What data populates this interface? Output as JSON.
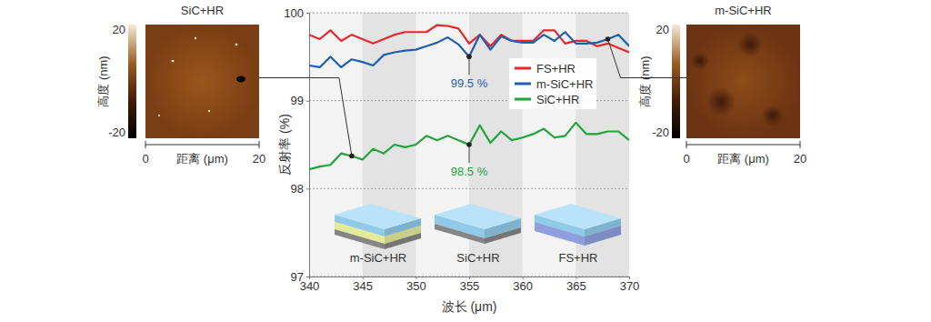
{
  "chart_data": {
    "type": "line",
    "x": [
      340,
      341,
      342,
      343,
      344,
      345,
      346,
      347,
      348,
      349,
      350,
      351,
      352,
      353,
      354,
      355,
      356,
      357,
      358,
      359,
      360,
      361,
      362,
      363,
      364,
      365,
      366,
      367,
      368,
      369,
      370
    ],
    "series": [
      {
        "name": "FS+HR",
        "color": "#e8262b",
        "values": [
          99.75,
          99.7,
          99.8,
          99.68,
          99.75,
          99.7,
          99.65,
          99.7,
          99.75,
          99.78,
          99.78,
          99.78,
          99.86,
          99.85,
          99.82,
          99.65,
          99.75,
          99.62,
          99.75,
          99.68,
          99.68,
          99.68,
          99.8,
          99.8,
          99.65,
          99.68,
          99.68,
          99.62,
          99.65,
          99.6,
          99.55
        ]
      },
      {
        "name": "m-SiC+HR",
        "color": "#1f5fad",
        "values": [
          99.4,
          99.38,
          99.5,
          99.38,
          99.47,
          99.44,
          99.4,
          99.52,
          99.55,
          99.57,
          99.58,
          99.62,
          99.66,
          99.72,
          99.64,
          99.5,
          99.75,
          99.58,
          99.73,
          99.68,
          99.66,
          99.66,
          99.75,
          99.68,
          99.78,
          99.65,
          99.65,
          99.66,
          99.7,
          99.75,
          99.62
        ]
      },
      {
        "name": "SiC+HR",
        "color": "#23a33b",
        "values": [
          98.22,
          98.25,
          98.27,
          98.4,
          98.37,
          98.33,
          98.45,
          98.4,
          98.5,
          98.47,
          98.5,
          98.6,
          98.55,
          98.6,
          98.55,
          98.5,
          98.72,
          98.52,
          98.65,
          98.55,
          98.58,
          98.62,
          98.68,
          98.58,
          98.6,
          98.75,
          98.62,
          98.62,
          98.65,
          98.65,
          98.55
        ]
      }
    ],
    "xlim": [
      340,
      370
    ],
    "ylim": [
      97,
      100
    ],
    "xticks": [
      340,
      345,
      350,
      355,
      360,
      365,
      370
    ],
    "yticks": [
      97,
      98,
      99,
      100
    ],
    "xlabel": "波长 (μm)",
    "ylabel": "反射率 (%)",
    "grid": true,
    "legend": "upper right",
    "annotations": [
      {
        "label": "99.5 %",
        "x": 355,
        "y": 99.5,
        "color": "#1f5fad"
      },
      {
        "label": "98.5 %",
        "x": 355,
        "y": 98.5,
        "color": "#23a33b"
      }
    ]
  },
  "insets": [
    {
      "title": "SiC+HR",
      "colorbar_label": "高度 (nm)",
      "colorbar_range": [
        -20,
        20
      ],
      "colorbar_ticks": [
        20,
        -20
      ],
      "xlabel": "距离 (μm)",
      "xlim": [
        0,
        20
      ],
      "xticks": [
        0,
        20
      ]
    },
    {
      "title": "m-SiC+HR",
      "colorbar_label": "高度 (nm)",
      "colorbar_range": [
        -20,
        20
      ],
      "colorbar_ticks": [
        20,
        -20
      ],
      "xlabel": "距离 (μm)",
      "xlim": [
        0,
        20
      ],
      "xticks": [
        0,
        20
      ]
    }
  ],
  "schematics": [
    "m-SiC+HR",
    "SiC+HR",
    "FS+HR"
  ]
}
